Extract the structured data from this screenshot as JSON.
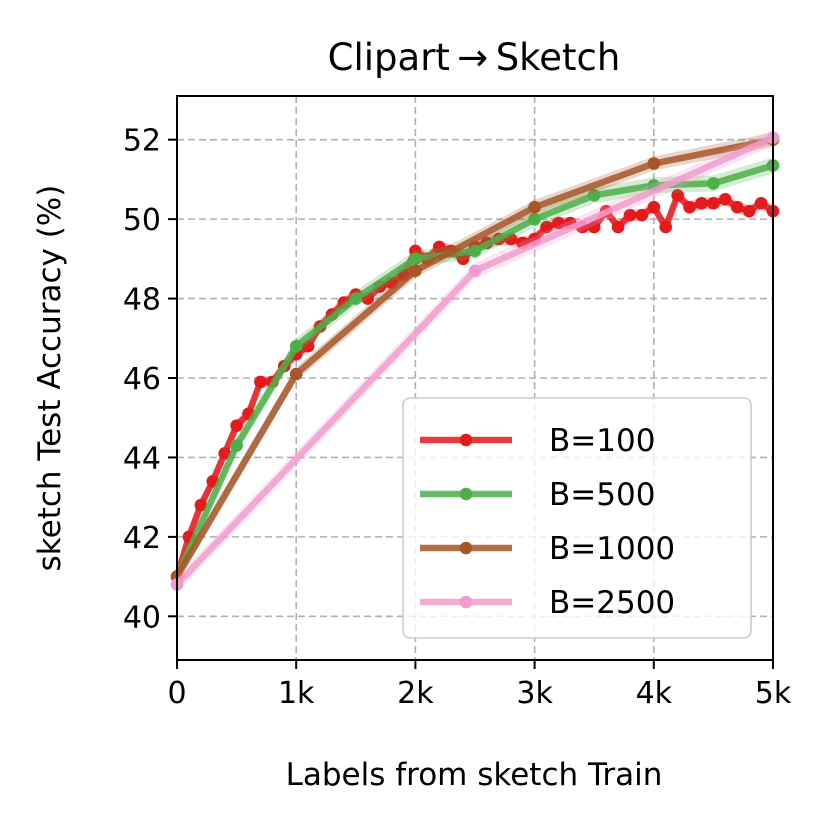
{
  "chart_data": {
    "type": "line",
    "title": "Clipart → Sketch",
    "xlabel": "Labels from sketch Train",
    "ylabel": "sketch Test Accuracy (%)",
    "xlim": [
      0,
      5000
    ],
    "ylim": [
      38.9,
      53.1
    ],
    "x_ticks": [
      0,
      1000,
      2000,
      3000,
      4000,
      5000
    ],
    "x_tick_labels": [
      "0",
      "1k",
      "2k",
      "3k",
      "4k",
      "5k"
    ],
    "y_ticks": [
      40,
      42,
      44,
      46,
      48,
      50,
      52
    ],
    "y_tick_labels": [
      "40",
      "42",
      "44",
      "46",
      "48",
      "50",
      "52"
    ],
    "grid": true,
    "legend_position": "lower-right",
    "series": [
      {
        "name": "B=100",
        "color": "#e41a1c",
        "band": 0.15,
        "x": [
          0,
          100,
          200,
          300,
          400,
          500,
          600,
          700,
          800,
          900,
          1000,
          1100,
          1200,
          1300,
          1400,
          1500,
          1600,
          1700,
          1800,
          1900,
          2000,
          2100,
          2200,
          2300,
          2400,
          2500,
          2600,
          2700,
          2800,
          2900,
          3000,
          3100,
          3200,
          3300,
          3400,
          3500,
          3600,
          3700,
          3800,
          3900,
          4000,
          4100,
          4200,
          4300,
          4400,
          4500,
          4600,
          4700,
          4800,
          4900,
          5000
        ],
        "y": [
          41.0,
          42.0,
          42.8,
          43.4,
          44.1,
          44.8,
          45.1,
          45.9,
          45.9,
          46.3,
          46.6,
          46.8,
          47.3,
          47.6,
          47.9,
          48.1,
          48.0,
          48.3,
          48.4,
          48.6,
          49.2,
          49.0,
          49.3,
          49.2,
          49.0,
          49.3,
          49.4,
          49.5,
          49.5,
          49.4,
          49.5,
          49.8,
          49.9,
          49.9,
          49.8,
          49.8,
          50.2,
          49.8,
          50.1,
          50.1,
          50.3,
          49.8,
          50.6,
          50.3,
          50.4,
          50.4,
          50.5,
          50.3,
          50.2,
          50.4,
          50.2
        ]
      },
      {
        "name": "B=500",
        "color": "#4daf4a",
        "band": 0.2,
        "x": [
          0,
          500,
          1000,
          1500,
          2000,
          2500,
          3000,
          3500,
          4000,
          4500,
          5000
        ],
        "y": [
          41.0,
          44.3,
          46.8,
          48.0,
          49.0,
          49.2,
          50.0,
          50.6,
          50.85,
          50.9,
          51.35
        ]
      },
      {
        "name": "B=1000",
        "color": "#a65628",
        "band": 0.18,
        "x": [
          0,
          1000,
          2000,
          3000,
          4000,
          5000
        ],
        "y": [
          41.0,
          46.1,
          48.7,
          50.3,
          51.4,
          52.0
        ]
      },
      {
        "name": "B=2500",
        "color": "#f19ccc",
        "band": 0.2,
        "x": [
          0,
          2500,
          5000
        ],
        "y": [
          40.8,
          48.7,
          52.05
        ]
      }
    ]
  }
}
